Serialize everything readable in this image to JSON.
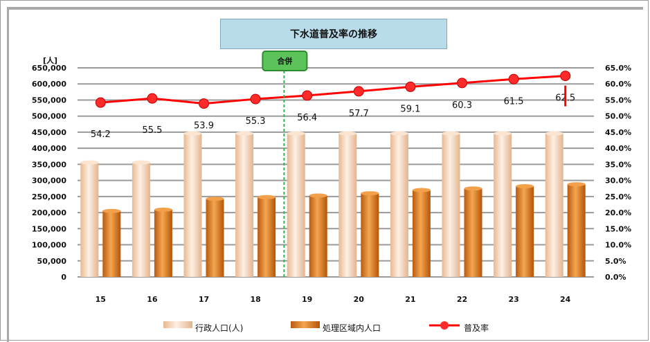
{
  "chart_data": {
    "type": "bar",
    "title": "下水道普及率の推移",
    "y_unit": "[人]",
    "categories": [
      "15",
      "16",
      "17",
      "18",
      "19",
      "20",
      "21",
      "22",
      "23",
      "24"
    ],
    "series": [
      {
        "name": "行政人口(人)",
        "kind": "bar",
        "axis": "left",
        "color": "#f5d6b8",
        "values": [
          356000,
          356000,
          446000,
          446000,
          446000,
          446000,
          446000,
          446000,
          446000,
          446000
        ]
      },
      {
        "name": "処理区域内人口",
        "kind": "bar",
        "axis": "left",
        "color": "#e8892a",
        "values": [
          205000,
          209000,
          243000,
          248000,
          253000,
          260000,
          270000,
          275000,
          282000,
          288000
        ]
      },
      {
        "name": "普及率",
        "kind": "line",
        "axis": "right",
        "color": "#ff0000",
        "values": [
          54.2,
          55.5,
          53.9,
          55.3,
          56.4,
          57.7,
          59.1,
          60.3,
          61.5,
          62.5
        ]
      }
    ],
    "data_labels": [
      "54.2",
      "55.5",
      "53.9",
      "55.3",
      "56.4",
      "57.7",
      "59.1",
      "60.3",
      "61.5",
      "62.5"
    ],
    "y_left": {
      "min": 0,
      "max": 650000,
      "step": 50000,
      "ticks": [
        "0",
        "50,000",
        "100,000",
        "150,000",
        "200,000",
        "250,000",
        "300,000",
        "350,000",
        "400,000",
        "450,000",
        "500,000",
        "550,000",
        "600,000",
        "650,000"
      ]
    },
    "y_right": {
      "min": 0,
      "max": 65,
      "step": 5,
      "ticks": [
        "0.0%",
        "5.0%",
        "10.0%",
        "15.0%",
        "20.0%",
        "25.0%",
        "30.0%",
        "35.0%",
        "40.0%",
        "45.0%",
        "50.0%",
        "55.0%",
        "60.0%",
        "65.0%"
      ]
    },
    "annotation": {
      "label": "合併",
      "after_category": "18",
      "color": "#2db84a"
    },
    "grid": true,
    "legend": "bottom"
  }
}
